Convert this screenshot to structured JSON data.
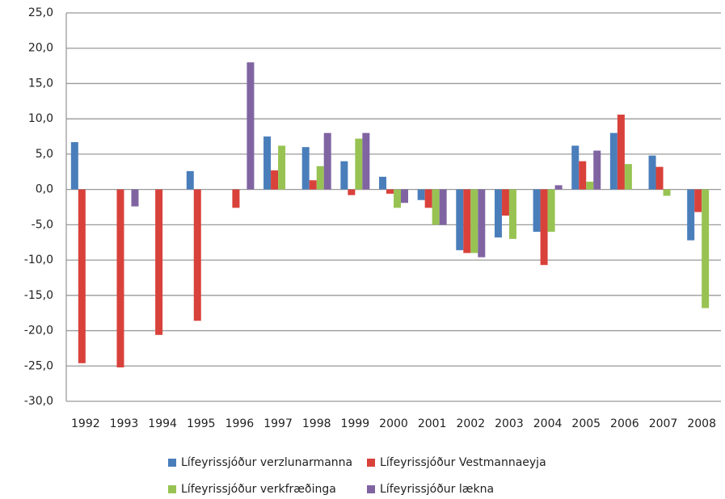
{
  "chart_data": {
    "type": "bar",
    "categories": [
      "1992",
      "1993",
      "1994",
      "1995",
      "1996",
      "1997",
      "1998",
      "1999",
      "2000",
      "2001",
      "2002",
      "2003",
      "2004",
      "2005",
      "2006",
      "2007",
      "2008"
    ],
    "series": [
      {
        "name": "Lífeyrissjóður verzlunarmanna",
        "color": "#4a7ebb",
        "values": [
          6.7,
          null,
          null,
          2.6,
          null,
          7.5,
          6.0,
          4.0,
          1.8,
          -1.5,
          -8.6,
          -6.8,
          -6.0,
          6.2,
          8.0,
          4.8,
          -7.2
        ]
      },
      {
        "name": "Lífeyrissjóður Vestmannaeyja",
        "color": "#d9413b",
        "values": [
          -24.6,
          -25.2,
          -20.6,
          -18.6,
          -2.6,
          2.7,
          1.3,
          -0.8,
          -0.6,
          -2.6,
          -9.0,
          -3.7,
          -10.7,
          4.0,
          10.6,
          3.2,
          -3.2
        ]
      },
      {
        "name": "Lífeyrissjóður verkfræðinga",
        "color": "#98c353",
        "values": [
          null,
          null,
          null,
          null,
          null,
          6.2,
          3.3,
          7.2,
          -2.6,
          -5.0,
          -9.0,
          -7.0,
          -6.0,
          1.1,
          3.6,
          -0.9,
          -16.8
        ]
      },
      {
        "name": "Lífeyrissjóður lækna",
        "color": "#8064a2",
        "values": [
          null,
          -2.4,
          null,
          null,
          18.0,
          null,
          8.0,
          8.0,
          -1.9,
          -5.0,
          -9.6,
          null,
          0.6,
          5.5,
          null,
          null,
          null
        ]
      }
    ],
    "ylim": [
      -30,
      25
    ],
    "yticks": [
      {
        "value": -30,
        "label": "-30,0"
      },
      {
        "value": -25,
        "label": "-25,0"
      },
      {
        "value": -20,
        "label": "-20,0"
      },
      {
        "value": -15,
        "label": "-15,0"
      },
      {
        "value": -10,
        "label": "-10,0"
      },
      {
        "value": -5,
        "label": "-5,0"
      },
      {
        "value": 0,
        "label": "0,0"
      },
      {
        "value": 5,
        "label": "5,0"
      },
      {
        "value": 10,
        "label": "10,0"
      },
      {
        "value": 15,
        "label": "15,0"
      },
      {
        "value": 20,
        "label": "20,0"
      },
      {
        "value": 25,
        "label": "25,0"
      }
    ],
    "grid": true,
    "legend": "bottom"
  }
}
